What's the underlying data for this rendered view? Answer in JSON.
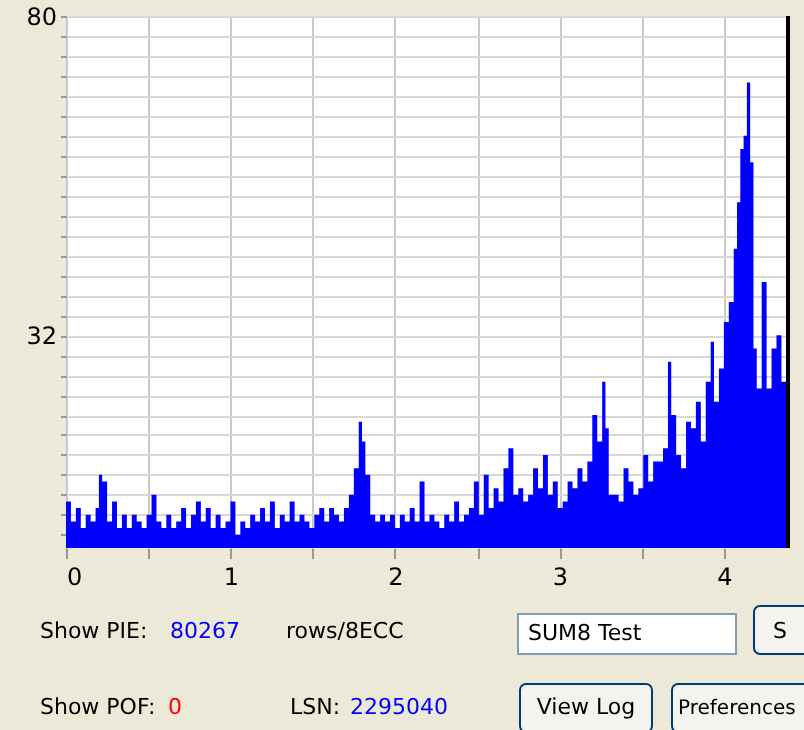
{
  "chart_data": {
    "type": "area",
    "color": "#0000ff",
    "x": [
      0.0,
      0.03,
      0.06,
      0.09,
      0.12,
      0.15,
      0.18,
      0.2,
      0.22,
      0.25,
      0.28,
      0.31,
      0.34,
      0.37,
      0.4,
      0.43,
      0.46,
      0.49,
      0.52,
      0.55,
      0.58,
      0.61,
      0.64,
      0.67,
      0.7,
      0.73,
      0.76,
      0.79,
      0.82,
      0.85,
      0.88,
      0.91,
      0.94,
      0.97,
      1.0,
      1.03,
      1.06,
      1.09,
      1.12,
      1.15,
      1.18,
      1.21,
      1.24,
      1.27,
      1.3,
      1.33,
      1.36,
      1.39,
      1.42,
      1.45,
      1.48,
      1.51,
      1.54,
      1.57,
      1.6,
      1.63,
      1.66,
      1.69,
      1.72,
      1.75,
      1.78,
      1.8,
      1.82,
      1.85,
      1.88,
      1.91,
      1.94,
      1.97,
      2.0,
      2.03,
      2.06,
      2.09,
      2.12,
      2.15,
      2.18,
      2.21,
      2.24,
      2.27,
      2.3,
      2.33,
      2.36,
      2.39,
      2.42,
      2.45,
      2.48,
      2.51,
      2.54,
      2.57,
      2.6,
      2.63,
      2.66,
      2.69,
      2.72,
      2.75,
      2.78,
      2.81,
      2.84,
      2.87,
      2.9,
      2.93,
      2.96,
      2.99,
      3.02,
      3.05,
      3.08,
      3.11,
      3.14,
      3.17,
      3.2,
      3.23,
      3.26,
      3.28,
      3.3,
      3.33,
      3.36,
      3.39,
      3.42,
      3.45,
      3.48,
      3.51,
      3.54,
      3.57,
      3.6,
      3.63,
      3.66,
      3.68,
      3.71,
      3.74,
      3.77,
      3.8,
      3.83,
      3.86,
      3.89,
      3.92,
      3.94,
      3.97,
      4.0,
      4.03,
      4.06,
      4.08,
      4.1,
      4.12,
      4.14,
      4.16,
      4.18,
      4.2,
      4.23,
      4.26,
      4.29,
      4.32,
      4.35,
      4.39
    ],
    "values": [
      7,
      4,
      6,
      3,
      5,
      4,
      6,
      11,
      10,
      4,
      7,
      3,
      5,
      3,
      5,
      4,
      3,
      5,
      8,
      4,
      3,
      5,
      3,
      4,
      6,
      3,
      5,
      7,
      4,
      6,
      3,
      5,
      3,
      4,
      7,
      2,
      4,
      3,
      5,
      4,
      6,
      4,
      7,
      3,
      5,
      4,
      7,
      4,
      5,
      4,
      3,
      5,
      6,
      4,
      6,
      5,
      4,
      6,
      8,
      12,
      19,
      16,
      11,
      5,
      4,
      5,
      4,
      5,
      3,
      5,
      4,
      6,
      4,
      10,
      4,
      5,
      4,
      3,
      5,
      4,
      7,
      4,
      5,
      6,
      10,
      5,
      11,
      6,
      9,
      7,
      12,
      15,
      8,
      9,
      7,
      8,
      12,
      9,
      14,
      8,
      10,
      6,
      7,
      10,
      9,
      12,
      10,
      13,
      20,
      16,
      25,
      18,
      8,
      8,
      7,
      12,
      10,
      8,
      9,
      14,
      10,
      13,
      13,
      15,
      28,
      20,
      14,
      12,
      19,
      18,
      22,
      16,
      25,
      31,
      22,
      27,
      34,
      37,
      45,
      52,
      60,
      62,
      70,
      58,
      30,
      24,
      40,
      24,
      30,
      32,
      25,
      28
    ],
    "xlim": [
      0,
      4.39
    ],
    "ylim": [
      0,
      80
    ],
    "xticks": [
      0,
      {
        "value": 0.5,
        "label": null
      },
      1,
      {
        "value": 1.5,
        "label": null
      },
      2,
      {
        "value": 2.5,
        "label": null
      },
      3,
      {
        "value": 3.5,
        "label": null
      },
      4
    ],
    "yticks": [
      {
        "value": 2,
        "label": null
      },
      {
        "value": 5,
        "label": null
      },
      {
        "value": 8,
        "label": null
      },
      {
        "value": 11,
        "label": null
      },
      {
        "value": 14,
        "label": null
      },
      {
        "value": 17,
        "label": null
      },
      {
        "value": 20,
        "label": null
      },
      {
        "value": 23,
        "label": null
      },
      {
        "value": 26,
        "label": null
      },
      {
        "value": 29,
        "label": null
      },
      32,
      {
        "value": 35,
        "label": null
      },
      {
        "value": 38,
        "label": null
      },
      {
        "value": 41,
        "label": null
      },
      {
        "value": 44,
        "label": null
      },
      {
        "value": 47,
        "label": null
      },
      {
        "value": 50,
        "label": null
      },
      {
        "value": 53,
        "label": null
      },
      {
        "value": 56,
        "label": null
      },
      {
        "value": 59,
        "label": null
      },
      {
        "value": 62,
        "label": null
      },
      {
        "value": 65,
        "label": null
      },
      {
        "value": 68,
        "label": null
      },
      {
        "value": 71,
        "label": null
      },
      {
        "value": 74,
        "label": null
      },
      {
        "value": 77,
        "label": null
      },
      80
    ],
    "grid": true,
    "annotations": [
      "Show PIE:",
      "80267",
      "rows/8ECC",
      "SUM8 Test",
      "S",
      "Show POF:",
      "0",
      "LSN:",
      "2295040",
      "View Log",
      "Preferences"
    ]
  }
}
